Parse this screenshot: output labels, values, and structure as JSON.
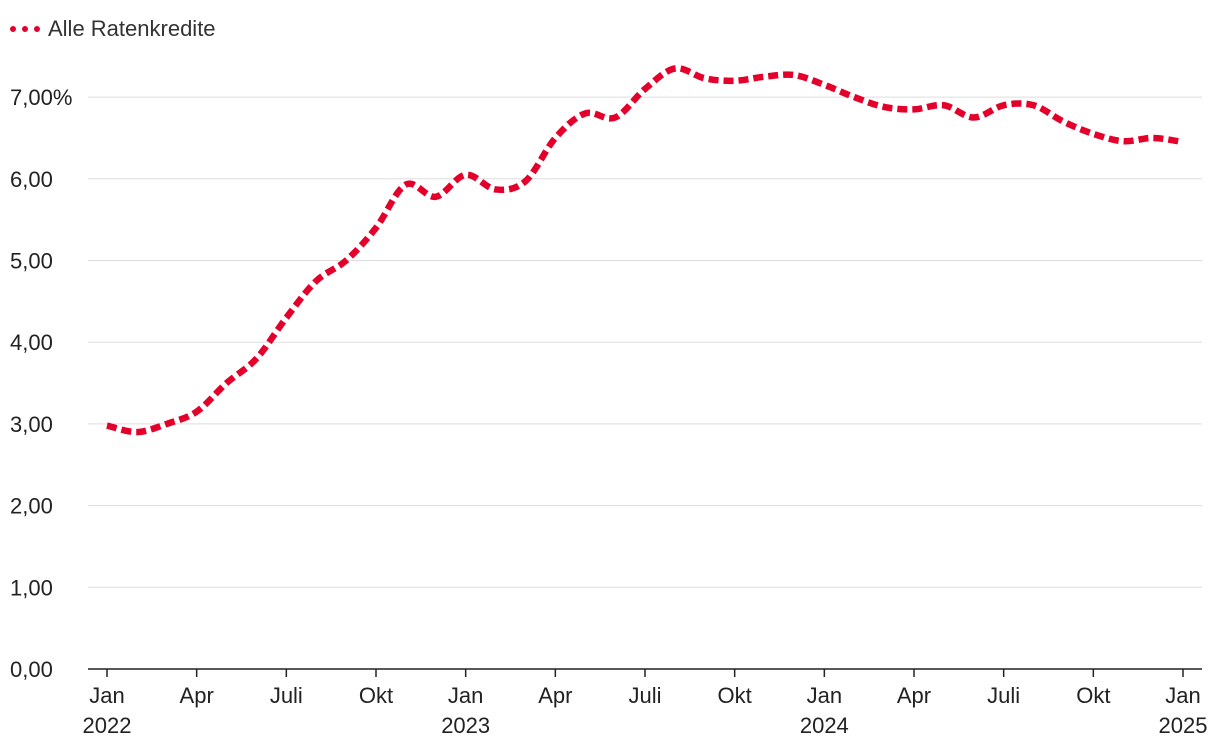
{
  "chart_data": {
    "type": "line",
    "legend": {
      "position": "top-left"
    },
    "series": [
      {
        "name": "Alle Ratenkredite",
        "color": "#e4002b",
        "style": "dotted",
        "x": [
          "2022-01",
          "2022-02",
          "2022-03",
          "2022-04",
          "2022-05",
          "2022-06",
          "2022-07",
          "2022-08",
          "2022-09",
          "2022-10",
          "2022-11",
          "2022-12",
          "2023-01",
          "2023-02",
          "2023-03",
          "2023-04",
          "2023-05",
          "2023-06",
          "2023-07",
          "2023-08",
          "2023-09",
          "2023-10",
          "2023-11",
          "2023-12",
          "2024-01",
          "2024-02",
          "2024-03",
          "2024-04",
          "2024-05",
          "2024-06",
          "2024-07",
          "2024-08",
          "2024-09",
          "2024-10",
          "2024-11",
          "2024-12",
          "2025-01"
        ],
        "values": [
          2.98,
          2.9,
          3.0,
          3.15,
          3.5,
          3.8,
          4.3,
          4.75,
          5.0,
          5.4,
          5.93,
          5.78,
          6.05,
          5.87,
          5.97,
          6.5,
          6.8,
          6.75,
          7.1,
          7.35,
          7.23,
          7.2,
          7.25,
          7.27,
          7.15,
          7.0,
          6.88,
          6.85,
          6.9,
          6.75,
          6.9,
          6.9,
          6.7,
          6.55,
          6.46,
          6.5,
          6.45
        ]
      }
    ],
    "ylim": [
      0,
      7.0
    ],
    "y_ticks": [
      "0,00",
      "1,00",
      "2,00",
      "3,00",
      "4,00",
      "5,00",
      "6,00",
      "7,00%"
    ],
    "x_ticks": [
      {
        "month": 0,
        "label": "Jan",
        "year": "2022"
      },
      {
        "month": 3,
        "label": "Apr",
        "year": ""
      },
      {
        "month": 6,
        "label": "Juli",
        "year": ""
      },
      {
        "month": 9,
        "label": "Okt",
        "year": ""
      },
      {
        "month": 12,
        "label": "Jan",
        "year": "2023"
      },
      {
        "month": 15,
        "label": "Apr",
        "year": ""
      },
      {
        "month": 18,
        "label": "Juli",
        "year": ""
      },
      {
        "month": 21,
        "label": "Okt",
        "year": ""
      },
      {
        "month": 24,
        "label": "Jan",
        "year": "2024"
      },
      {
        "month": 27,
        "label": "Apr",
        "year": ""
      },
      {
        "month": 30,
        "label": "Juli",
        "year": ""
      },
      {
        "month": 33,
        "label": "Okt",
        "year": ""
      },
      {
        "month": 36,
        "label": "Jan",
        "year": "2025"
      }
    ],
    "grid": true
  }
}
